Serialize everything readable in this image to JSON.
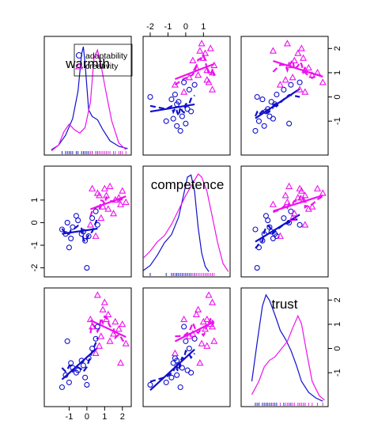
{
  "chart_data": {
    "type": "scatter",
    "variables": [
      "warmth",
      "competence",
      "trust"
    ],
    "groups": [
      {
        "name": "adaptability",
        "color": "#1010cc",
        "marker": "circle"
      },
      {
        "name": "creativity",
        "color": "#ee11ee",
        "marker": "triangle"
      }
    ],
    "axis_range": [
      -2.4,
      2.5
    ],
    "ticks": {
      "top": [
        "-2",
        "-1",
        "0",
        "1"
      ],
      "right_row1": [
        "2",
        "1",
        "0",
        "-1"
      ],
      "left_row2": [
        "1",
        "0",
        "-1",
        "-2"
      ],
      "bottom_col1": [
        "-1",
        "0",
        "1",
        "2"
      ],
      "right_row3": [
        "2",
        "1",
        "0",
        "-1"
      ]
    },
    "data": {
      "adaptability": {
        "warmth": [
          -1.4,
          -1.2,
          -1.0,
          -0.9,
          -0.8,
          -0.6,
          -0.5,
          -0.3,
          -0.2,
          -0.1,
          0.0,
          0.1,
          0.3,
          0.5,
          0.6,
          -1.1
        ],
        "competence": [
          -0.3,
          -0.5,
          -1.1,
          -0.7,
          -0.2,
          0.3,
          0.1,
          -0.5,
          -0.4,
          -0.8,
          -2.0,
          -0.6,
          0.2,
          0.5,
          -0.1,
          0.0
        ],
        "trust": [
          -1.6,
          -1.1,
          -1.4,
          -0.6,
          -0.8,
          -1.0,
          -0.9,
          -0.5,
          -0.7,
          -1.2,
          -1.5,
          -0.4,
          0.0,
          0.4,
          0.9,
          0.3
        ]
      },
      "creativity": {
        "warmth": [
          0.3,
          0.6,
          0.9,
          1.1,
          1.3,
          1.5,
          1.8,
          2.0,
          2.2,
          0.8,
          1.6,
          1.2,
          0.2,
          0.5,
          1.9,
          0.7,
          1.0
        ],
        "competence": [
          1.5,
          1.3,
          0.7,
          1.2,
          1.6,
          0.4,
          1.1,
          1.4,
          0.9,
          0.2,
          1.0,
          0.6,
          -0.1,
          -0.6,
          0.8,
          1.2,
          1.5
        ],
        "trust": [
          0.9,
          2.2,
          1.6,
          1.2,
          0.3,
          0.6,
          0.8,
          1.0,
          0.2,
          0.5,
          1.1,
          1.4,
          1.2,
          -0.2,
          -0.6,
          0.1,
          1.9
        ]
      }
    },
    "density": {
      "warmth": {
        "adaptability": [
          [
            -2.0,
            0.02
          ],
          [
            -1.6,
            0.06
          ],
          [
            -1.2,
            0.15
          ],
          [
            -0.8,
            0.3
          ],
          [
            -0.5,
            0.55
          ],
          [
            -0.3,
            0.88
          ],
          [
            -0.2,
            0.95
          ],
          [
            -0.1,
            0.8
          ],
          [
            0.1,
            0.38
          ],
          [
            0.3,
            0.32
          ],
          [
            0.6,
            0.29
          ],
          [
            0.9,
            0.2
          ],
          [
            1.3,
            0.1
          ],
          [
            1.8,
            0.05
          ],
          [
            2.3,
            0.03
          ]
        ],
        "creativity": [
          [
            -2.0,
            0.01
          ],
          [
            -1.6,
            0.06
          ],
          [
            -1.3,
            0.18
          ],
          [
            -1.0,
            0.25
          ],
          [
            -0.7,
            0.2
          ],
          [
            -0.4,
            0.17
          ],
          [
            -0.1,
            0.22
          ],
          [
            0.2,
            0.45
          ],
          [
            0.4,
            0.85
          ],
          [
            0.6,
            0.92
          ],
          [
            0.8,
            0.78
          ],
          [
            1.1,
            0.52
          ],
          [
            1.4,
            0.28
          ],
          [
            1.8,
            0.08
          ],
          [
            2.2,
            0.02
          ]
        ]
      },
      "competence": {
        "adaptability": [
          [
            -2.4,
            0.03
          ],
          [
            -2.0,
            0.08
          ],
          [
            -1.6,
            0.18
          ],
          [
            -1.2,
            0.3
          ],
          [
            -0.8,
            0.38
          ],
          [
            -0.4,
            0.55
          ],
          [
            -0.1,
            0.78
          ],
          [
            0.1,
            0.94
          ],
          [
            0.3,
            0.96
          ],
          [
            0.5,
            0.8
          ],
          [
            0.7,
            0.45
          ],
          [
            0.9,
            0.2
          ],
          [
            1.1,
            0.07
          ],
          [
            1.3,
            0.02
          ]
        ],
        "creativity": [
          [
            -2.4,
            0.15
          ],
          [
            -2.0,
            0.22
          ],
          [
            -1.6,
            0.31
          ],
          [
            -1.2,
            0.37
          ],
          [
            -0.8,
            0.48
          ],
          [
            -0.4,
            0.62
          ],
          [
            0.0,
            0.76
          ],
          [
            0.4,
            0.88
          ],
          [
            0.7,
            0.97
          ],
          [
            0.9,
            0.94
          ],
          [
            1.2,
            0.8
          ],
          [
            1.5,
            0.55
          ],
          [
            1.8,
            0.3
          ],
          [
            2.1,
            0.1
          ],
          [
            2.4,
            0.02
          ]
        ]
      },
      "trust": {
        "adaptability": [
          [
            -1.8,
            0.2
          ],
          [
            -1.5,
            0.55
          ],
          [
            -1.2,
            0.88
          ],
          [
            -1.0,
            0.98
          ],
          [
            -0.8,
            0.93
          ],
          [
            -0.5,
            0.8
          ],
          [
            -0.2,
            0.66
          ],
          [
            0.1,
            0.58
          ],
          [
            0.4,
            0.48
          ],
          [
            0.7,
            0.35
          ],
          [
            1.0,
            0.2
          ],
          [
            1.4,
            0.1
          ],
          [
            1.8,
            0.05
          ],
          [
            2.2,
            0.02
          ]
        ],
        "creativity": [
          [
            -1.8,
            0.08
          ],
          [
            -1.4,
            0.2
          ],
          [
            -1.1,
            0.33
          ],
          [
            -0.8,
            0.39
          ],
          [
            -0.5,
            0.42
          ],
          [
            -0.1,
            0.5
          ],
          [
            0.2,
            0.56
          ],
          [
            0.5,
            0.68
          ],
          [
            0.8,
            0.79
          ],
          [
            1.0,
            0.72
          ],
          [
            1.3,
            0.45
          ],
          [
            1.6,
            0.2
          ],
          [
            2.0,
            0.07
          ],
          [
            2.3,
            0.03
          ]
        ]
      }
    }
  }
}
